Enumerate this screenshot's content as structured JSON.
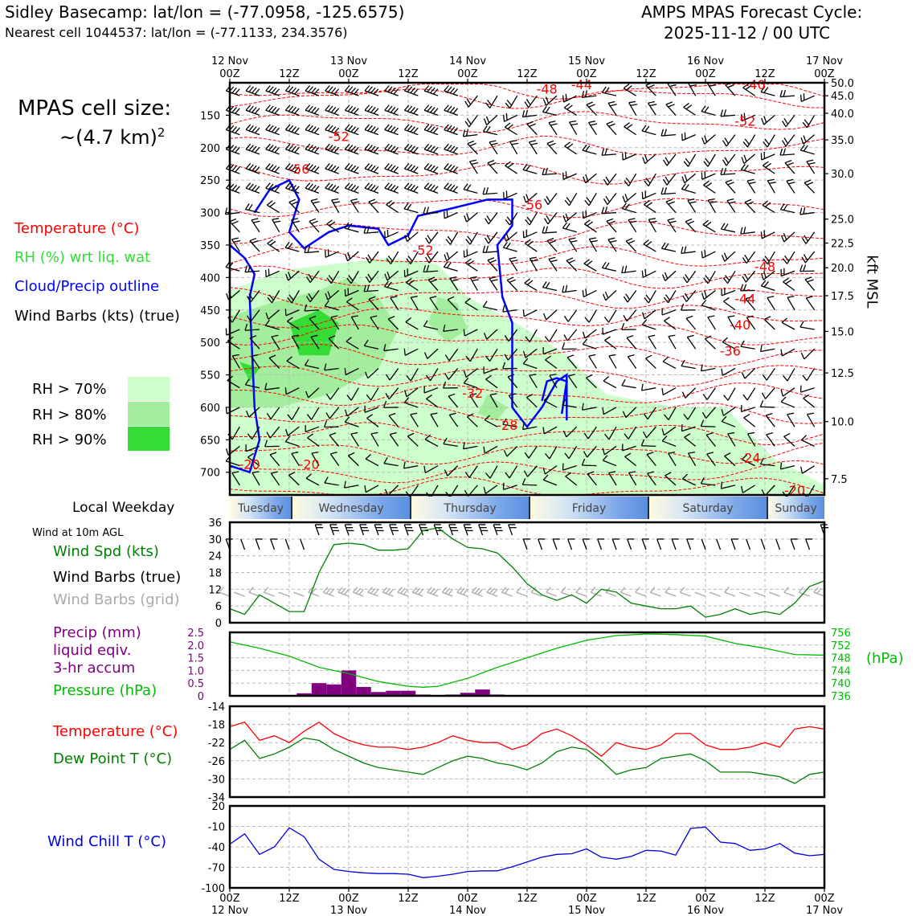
{
  "header": {
    "site_line": "Sidley Basecamp: lat/lon = (-77.0958, -125.6575)",
    "cell_line": "Nearest cell 1044537: lat/lon = (-77.1133, 234.3576)",
    "product_line1": "AMPS MPAS Forecast Cycle:",
    "product_line2": "2025-11-12 / 00 UTC"
  },
  "cell_size": {
    "label": "MPAS cell size:",
    "value": "~(4.7 km)",
    "exponent": "2"
  },
  "legend": {
    "temperature": "Temperature (°C)",
    "rh": "RH (%) wrt liq. wat",
    "cloud": "Cloud/Precip outline",
    "barbs": "Wind Barbs (kts) (true)",
    "rh_levels": [
      "RH > 70%",
      "RH > 80%",
      "RH > 90%"
    ],
    "rh_colors": [
      "#ccffcc",
      "#a3ee9c",
      "#36dc36"
    ]
  },
  "colors": {
    "temp": "#ff0000",
    "rh": "#33cc33",
    "cloud": "#0000ff",
    "wind_spd": "#008000",
    "precip": "#800080",
    "pressure": "#00bb00",
    "dewpoint": "#008000",
    "windchill": "#0000dd"
  },
  "time_axis": {
    "top_ticks": [
      {
        "day": "12 Nov",
        "hour": "00Z"
      },
      {
        "day": "",
        "hour": "12Z"
      },
      {
        "day": "13 Nov",
        "hour": "00Z"
      },
      {
        "day": "",
        "hour": "12Z"
      },
      {
        "day": "14 Nov",
        "hour": "00Z"
      },
      {
        "day": "",
        "hour": "12Z"
      },
      {
        "day": "15 Nov",
        "hour": "00Z"
      },
      {
        "day": "",
        "hour": "12Z"
      },
      {
        "day": "16 Nov",
        "hour": "00Z"
      },
      {
        "day": "",
        "hour": "12Z"
      },
      {
        "day": "17 Nov",
        "hour": "00Z"
      }
    ]
  },
  "weekday_bar": {
    "label": "Local Weekday",
    "days": [
      "Tuesday",
      "Wednesday",
      "Thursday",
      "Friday",
      "Saturday",
      "Sunday"
    ]
  },
  "chart_data": [
    {
      "type": "line",
      "name": "cross-section",
      "x_hours": [
        0,
        120
      ],
      "ylabel_right": "kft MSL",
      "pressure_ticks": [
        150,
        200,
        250,
        300,
        350,
        400,
        450,
        500,
        550,
        600,
        650,
        700
      ],
      "height_ticks_kft": [
        "50.0",
        "45.0",
        "40.0",
        "35.0",
        "30.0",
        "25.0",
        "22.5",
        "20.0",
        "17.5",
        "15.0",
        "12.5",
        "10.0",
        "7.5"
      ],
      "height_tick_pressures": [
        100,
        120,
        147,
        188,
        240,
        310,
        347,
        385,
        428,
        483,
        547,
        622,
        710
      ],
      "ylim_hpa": [
        100,
        735
      ],
      "temp_labels": [
        {
          "text": "-48",
          "h": 64,
          "p": 117
        },
        {
          "text": "-44",
          "h": 71,
          "p": 110
        },
        {
          "text": "-40",
          "h": 106,
          "p": 110
        },
        {
          "text": "-52",
          "h": 104,
          "p": 166
        },
        {
          "text": "-52",
          "h": 22,
          "p": 190
        },
        {
          "text": "-56",
          "h": 14,
          "p": 240
        },
        {
          "text": "-56",
          "h": 61,
          "p": 295
        },
        {
          "text": "-52",
          "h": 39,
          "p": 365
        },
        {
          "text": "-48",
          "h": 108,
          "p": 390
        },
        {
          "text": "-44",
          "h": 104,
          "p": 440
        },
        {
          "text": "-40",
          "h": 103,
          "p": 480
        },
        {
          "text": "-36",
          "h": 101,
          "p": 520
        },
        {
          "text": "-32",
          "h": 49,
          "p": 585
        },
        {
          "text": "-28",
          "h": 56,
          "p": 635
        },
        {
          "text": "-24",
          "h": 105,
          "p": 685
        },
        {
          "text": "-20",
          "h": 4,
          "p": 695
        },
        {
          "text": "-20",
          "h": 16,
          "p": 695
        },
        {
          "text": "-20",
          "h": 114,
          "p": 735
        }
      ]
    },
    {
      "type": "line",
      "name": "surface-wind",
      "ylabel": "Wind Spd (kts)",
      "legend_black": "Wind Barbs (true)",
      "legend_grey": "Wind Barbs (grid)",
      "title": "Wind at 10m AGL",
      "ylim": [
        0,
        36
      ],
      "yticks": [
        0,
        6,
        12,
        18,
        24,
        30,
        36
      ],
      "x": [
        0,
        3,
        6,
        9,
        12,
        15,
        18,
        21,
        24,
        27,
        30,
        33,
        36,
        39,
        42,
        45,
        48,
        51,
        54,
        57,
        60,
        63,
        66,
        69,
        72,
        75,
        78,
        81,
        84,
        87,
        90,
        93,
        96,
        99,
        102,
        105,
        108,
        111,
        114,
        117,
        120
      ],
      "values": [
        5,
        3,
        10,
        7,
        4,
        4,
        18,
        28,
        28.5,
        28,
        26,
        26,
        26.5,
        33,
        34,
        30,
        27,
        26.5,
        25,
        20,
        14,
        10,
        8,
        10,
        7,
        12,
        11,
        7,
        6,
        5,
        5,
        6,
        2,
        3,
        5,
        3,
        4,
        3,
        7,
        13,
        15
      ]
    },
    {
      "type": "bar",
      "name": "precip-pressure",
      "ylabel": "Precip (mm)",
      "ylabel_sub1": "liquid eqiv.",
      "ylabel_sub2": "3-hr accum",
      "ylabel2": "Pressure (hPa)",
      "ylabel2_short": "(hPa)",
      "precip_ylim": [
        0,
        2.5
      ],
      "precip_yticks": [
        "0",
        "0.5",
        "1.0",
        "1.5",
        "2.0",
        "2.5"
      ],
      "pressure_ylim": [
        736,
        756
      ],
      "pressure_yticks": [
        736,
        740,
        744,
        748,
        752,
        756
      ],
      "precip_x": [
        15,
        18,
        21,
        24,
        27,
        30,
        33,
        36,
        39,
        42,
        45,
        48,
        51,
        54,
        57
      ],
      "precip_values": [
        0.1,
        0.5,
        0.45,
        1.0,
        0.35,
        0.15,
        0.2,
        0.2,
        0.05,
        0.02,
        0.05,
        0.12,
        0.25,
        0.05,
        0.02
      ],
      "pressure_x": [
        0,
        6,
        12,
        18,
        24,
        30,
        36,
        39,
        42,
        48,
        54,
        60,
        66,
        72,
        78,
        84,
        90,
        96,
        102,
        108,
        114,
        120
      ],
      "pressure_values": [
        753,
        751,
        748.5,
        745,
        743,
        740.5,
        739,
        738.7,
        739,
        741.5,
        745,
        748,
        751,
        753.5,
        755,
        755.5,
        755.3,
        754.8,
        752.5,
        751,
        749,
        748.8
      ]
    },
    {
      "type": "line",
      "name": "temp-dewpoint",
      "series_labels": [
        "Temperature (°C)",
        "Dew Point T (°C)"
      ],
      "ylim": [
        -34,
        -14
      ],
      "yticks": [
        -14,
        -18,
        -22,
        -26,
        -30,
        -34
      ],
      "x": [
        0,
        3,
        6,
        9,
        12,
        15,
        18,
        21,
        24,
        27,
        30,
        33,
        36,
        39,
        42,
        45,
        48,
        51,
        54,
        57,
        60,
        63,
        66,
        69,
        72,
        75,
        78,
        81,
        84,
        87,
        90,
        93,
        96,
        99,
        102,
        105,
        108,
        111,
        114,
        117,
        120
      ],
      "temperature": [
        -18.5,
        -17.5,
        -21.5,
        -20.5,
        -22,
        -19.5,
        -17.5,
        -20,
        -21.5,
        -22.5,
        -23,
        -23,
        -23.5,
        -23,
        -22,
        -20.5,
        -21.5,
        -22,
        -22,
        -23.5,
        -22.5,
        -20,
        -19,
        -20.5,
        -22.5,
        -25,
        -22,
        -23,
        -23.5,
        -22.5,
        -20,
        -20,
        -22.5,
        -23.5,
        -23.5,
        -23,
        -22,
        -23,
        -19,
        -18.5,
        -19
      ],
      "dewpoint": [
        -23.5,
        -21.5,
        -25.5,
        -24.5,
        -23,
        -21,
        -21.5,
        -23.5,
        -25,
        -26.5,
        -27.5,
        -28,
        -28.5,
        -29,
        -27.5,
        -26,
        -25,
        -25.5,
        -26.5,
        -27,
        -28,
        -26.5,
        -24,
        -23,
        -23.5,
        -26,
        -29,
        -28,
        -27.5,
        -25.5,
        -25,
        -24.5,
        -26,
        -28.5,
        -28.5,
        -28.5,
        -29,
        -29.5,
        -31,
        -29,
        -28.5
      ]
    },
    {
      "type": "line",
      "name": "wind-chill",
      "ylabel": "Wind Chill T (°C)",
      "ylim": [
        -100,
        20
      ],
      "yticks": [
        20,
        -10,
        -40,
        -70,
        -100
      ],
      "x": [
        0,
        3,
        6,
        9,
        12,
        15,
        18,
        21,
        24,
        27,
        30,
        33,
        36,
        39,
        42,
        45,
        48,
        51,
        54,
        57,
        60,
        63,
        66,
        69,
        72,
        75,
        78,
        81,
        84,
        87,
        90,
        93,
        96,
        99,
        102,
        105,
        108,
        111,
        114,
        117,
        120
      ],
      "values": [
        -36,
        -21,
        -51,
        -40,
        -12,
        -25,
        -58,
        -73,
        -76,
        -78,
        -79,
        -79,
        -80,
        -85,
        -83,
        -80,
        -76,
        -75,
        -75,
        -69,
        -62,
        -55,
        -51,
        -50,
        -43,
        -55,
        -58,
        -54,
        -45,
        -46,
        -52,
        -13,
        -11,
        -33,
        -35,
        -45,
        -43,
        -35,
        -49,
        -53,
        -51
      ]
    },
    {
      "type": "line",
      "name": "bottom-time-axis",
      "xtick_hours": [
        "00Z",
        "12Z",
        "00Z",
        "12Z",
        "00Z",
        "12Z",
        "00Z",
        "12Z",
        "00Z",
        "12Z",
        "00Z"
      ],
      "xtick_days": [
        "12 Nov",
        "",
        "13 Nov",
        "",
        "14 Nov",
        "",
        "15 Nov",
        "",
        "16 Nov",
        "",
        "17 Nov"
      ]
    }
  ]
}
